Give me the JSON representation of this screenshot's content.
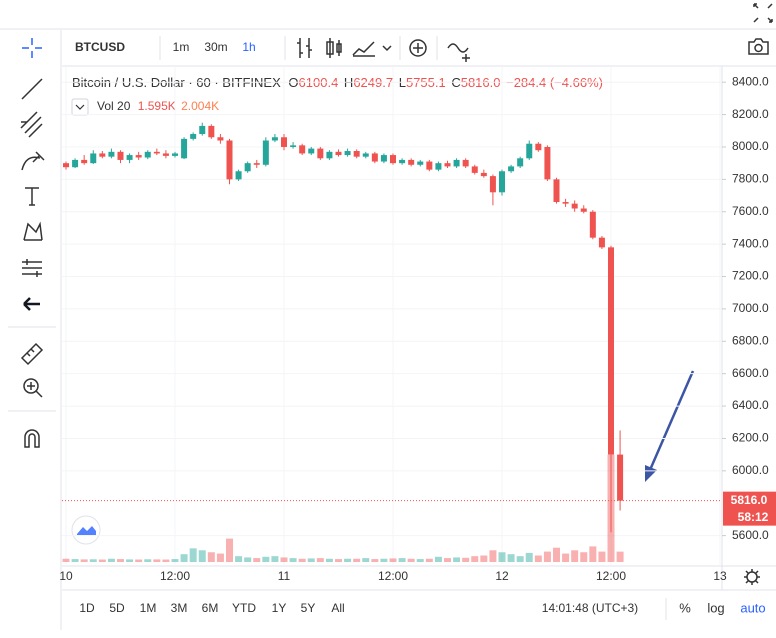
{
  "toolbar": {
    "symbol": "BTCUSD",
    "intervals": [
      "1m",
      "30m",
      "1h"
    ]
  },
  "chart_data": {
    "type": "candlestick",
    "title": "Bitcoin / U.S. Dollar · 60 · BITFINEX",
    "ohlc_labels": [
      "O",
      "H",
      "L",
      "C"
    ],
    "legend_values": [
      {
        "value": 6100.4,
        "label": "6100.4"
      },
      {
        "value": 6249.7,
        "label": "6249.7"
      },
      {
        "value": 5755.1,
        "label": "5755.1"
      },
      {
        "value": 5816,
        "label": "5816.0"
      }
    ],
    "change_label": "−284.4 (−4.66%)",
    "volume_title": "Vol 20",
    "volume_legend": [
      {
        "value": 1595,
        "label": "1.595K"
      },
      {
        "value": 2004,
        "label": "2.004K"
      }
    ],
    "x": [
      0,
      1,
      2,
      3,
      4,
      5,
      6,
      7,
      8,
      9,
      10,
      11,
      12,
      13,
      14,
      15,
      16,
      17,
      18,
      19,
      20,
      21,
      22,
      23,
      24,
      25,
      26,
      27,
      28,
      29,
      30,
      31,
      32,
      33,
      34,
      35,
      36,
      37,
      38,
      39,
      40,
      41,
      42,
      43,
      44,
      45,
      46,
      47,
      48,
      49,
      50,
      51,
      52,
      53,
      54,
      55,
      56,
      57,
      58,
      59,
      60,
      61
    ],
    "open": [
      7900,
      7875,
      7920,
      7900,
      7960,
      7940,
      7970,
      7920,
      7950,
      7935,
      7970,
      7960,
      7945,
      7930,
      8050,
      8080,
      8130,
      8060,
      8040,
      7800,
      7850,
      7900,
      7890,
      8040,
      8060,
      8000,
      8010,
      7960,
      7990,
      7930,
      7970,
      7950,
      7975,
      7940,
      7960,
      7910,
      7950,
      7900,
      7920,
      7890,
      7910,
      7860,
      7900,
      7880,
      7920,
      7880,
      7840,
      7820,
      7720,
      7850,
      7880,
      7930,
      8020,
      8000,
      7800,
      7660,
      7650,
      7620,
      7600,
      7440,
      7380,
      6100.4
    ],
    "high": [
      7910,
      7930,
      7950,
      7980,
      7975,
      7990,
      7980,
      7960,
      7970,
      7980,
      7990,
      7980,
      7970,
      8060,
      8090,
      8150,
      8140,
      8080,
      8050,
      7860,
      7910,
      7920,
      8060,
      8080,
      8080,
      8030,
      8020,
      8000,
      8000,
      7980,
      7985,
      7990,
      7985,
      7970,
      7970,
      7960,
      7960,
      7930,
      7930,
      7920,
      7920,
      7910,
      7915,
      7930,
      7930,
      7890,
      7860,
      7830,
      7860,
      7890,
      7940,
      8040,
      8030,
      8010,
      7810,
      7680,
      7670,
      7640,
      7610,
      7450,
      7390,
      6249.7
    ],
    "low": [
      7860,
      7870,
      7890,
      7895,
      7930,
      7930,
      7900,
      7900,
      7920,
      7925,
      7950,
      7930,
      7935,
      7925,
      8040,
      8070,
      8050,
      8020,
      7770,
      7790,
      7840,
      7870,
      7880,
      8030,
      7980,
      7990,
      7950,
      7950,
      7920,
      7920,
      7940,
      7940,
      7930,
      7930,
      7900,
      7900,
      7890,
      7890,
      7880,
      7880,
      7850,
      7850,
      7870,
      7870,
      7870,
      7830,
      7810,
      7640,
      7700,
      7840,
      7870,
      7920,
      7970,
      7790,
      7650,
      7630,
      7600,
      7590,
      7430,
      7370,
      5620,
      5755.1
    ],
    "close": [
      7875,
      7920,
      7900,
      7960,
      7940,
      7970,
      7920,
      7950,
      7935,
      7970,
      7960,
      7945,
      7960,
      8050,
      8080,
      8130,
      8060,
      8040,
      7800,
      7850,
      7900,
      7890,
      8040,
      8060,
      8000,
      8010,
      7960,
      7990,
      7930,
      7970,
      7950,
      7975,
      7940,
      7960,
      7910,
      7950,
      7900,
      7920,
      7890,
      7910,
      7860,
      7900,
      7880,
      7920,
      7880,
      7840,
      7820,
      7720,
      7850,
      7880,
      7930,
      8020,
      7980,
      7800,
      7660,
      7650,
      7620,
      7600,
      7440,
      7380,
      6100.4,
      5816
    ],
    "volume": [
      500,
      450,
      400,
      420,
      380,
      500,
      450,
      400,
      380,
      420,
      400,
      380,
      450,
      1200,
      2100,
      1800,
      1500,
      1300,
      3600,
      900,
      700,
      600,
      800,
      900,
      700,
      600,
      500,
      550,
      600,
      500,
      450,
      500,
      500,
      600,
      450,
      500,
      550,
      600,
      500,
      450,
      500,
      800,
      600,
      700,
      650,
      900,
      1000,
      1800,
      1500,
      1200,
      900,
      1400,
      1000,
      1600,
      2200,
      1300,
      1800,
      1500,
      2400,
      1600,
      16500,
      1595
    ],
    "up_color": "#26a69a",
    "down_color": "#ef5350",
    "xlim": [
      0,
      72
    ],
    "xticks": [
      {
        "value": 0,
        "label": "10"
      },
      {
        "value": 12,
        "label": "12:00"
      },
      {
        "value": 24,
        "label": "11"
      },
      {
        "value": 36,
        "label": "12:00"
      },
      {
        "value": 48,
        "label": "12"
      },
      {
        "value": 60,
        "label": "12:00"
      },
      {
        "value": 72,
        "label": "13"
      }
    ],
    "ylim": [
      5400,
      8500
    ],
    "yticks": [
      {
        "value": 5600,
        "label": "5600.0"
      },
      {
        "value": 6000,
        "label": "6000.0"
      },
      {
        "value": 6200,
        "label": "6200.0"
      },
      {
        "value": 6400,
        "label": "6400.0"
      },
      {
        "value": 6600,
        "label": "6600.0"
      },
      {
        "value": 6800,
        "label": "6800.0"
      },
      {
        "value": 7000,
        "label": "7000.0"
      },
      {
        "value": 7200,
        "label": "7200.0"
      },
      {
        "value": 7400,
        "label": "7400.0"
      },
      {
        "value": 7600,
        "label": "7600.0"
      },
      {
        "value": 7800,
        "label": "7800.0"
      },
      {
        "value": 8000,
        "label": "8000.0"
      },
      {
        "value": 8200,
        "label": "8200.0"
      },
      {
        "value": 8400,
        "label": "8400.0"
      }
    ],
    "volume_ylim": [
      0,
      20000
    ],
    "last_price": {
      "value": 5816,
      "label": "5816.0"
    },
    "countdown": "58:12",
    "grid": true,
    "log_scale": false
  },
  "bottom_bar": {
    "ranges": [
      "1D",
      "5D",
      "1M",
      "3M",
      "6M",
      "YTD",
      "1Y",
      "5Y",
      "All"
    ],
    "clock": "14:01:48 (UTC+3)",
    "options": [
      "%",
      "log",
      "auto"
    ]
  }
}
